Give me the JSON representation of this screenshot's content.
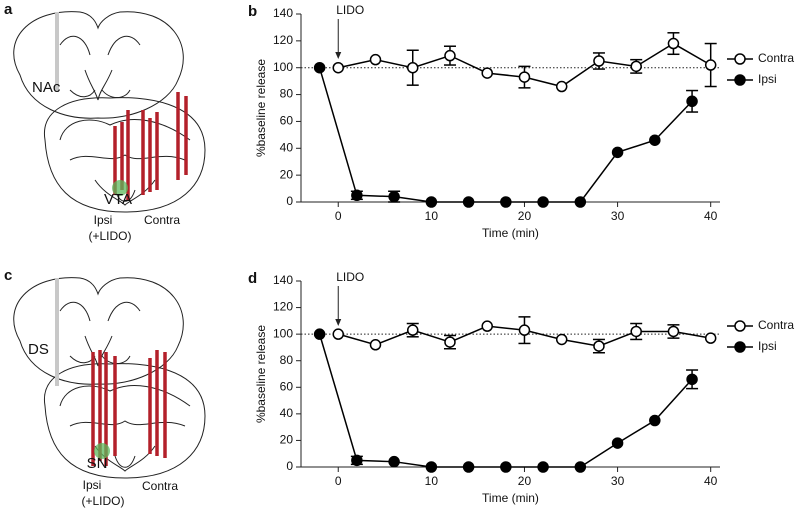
{
  "chart_data": [
    {
      "type": "line",
      "panel": "b",
      "xlabel": "Time (min)",
      "ylabel": "%baseline release",
      "annotation": {
        "text": "LIDO",
        "x": 0
      },
      "reference_line": 100,
      "xlim": [
        -4,
        41
      ],
      "ylim": [
        0,
        140
      ],
      "xticks": [
        0,
        10,
        20,
        30,
        40
      ],
      "yticks": [
        0,
        20,
        40,
        60,
        80,
        100,
        120,
        140
      ],
      "legend": "right",
      "series": [
        {
          "name": "Contra",
          "color": "#000000",
          "marker_fill": "#ffffff",
          "x": [
            0,
            4,
            8,
            12,
            16,
            20,
            24,
            28,
            32,
            36,
            40
          ],
          "values": [
            100,
            106,
            100,
            109,
            96,
            93,
            86,
            105,
            101,
            118,
            102
          ],
          "errors": [
            null,
            null,
            13,
            7,
            null,
            8,
            null,
            6,
            5,
            8,
            16
          ]
        },
        {
          "name": "Ipsi",
          "color": "#000000",
          "marker_fill": "#000000",
          "x": [
            -2,
            2,
            6,
            10,
            14,
            18,
            22,
            26,
            30,
            34,
            38
          ],
          "values": [
            100,
            5,
            4,
            0,
            0,
            0,
            0,
            0,
            37,
            46,
            75
          ],
          "errors": [
            null,
            3,
            4,
            null,
            null,
            null,
            null,
            null,
            null,
            null,
            8
          ]
        }
      ]
    },
    {
      "type": "line",
      "panel": "d",
      "xlabel": "Time (min)",
      "ylabel": "%baseline release",
      "annotation": {
        "text": "LIDO",
        "x": 0
      },
      "reference_line": 100,
      "xlim": [
        -4,
        41
      ],
      "ylim": [
        0,
        140
      ],
      "xticks": [
        0,
        10,
        20,
        30,
        40
      ],
      "yticks": [
        0,
        20,
        40,
        60,
        80,
        100,
        120,
        140
      ],
      "legend": "right",
      "series": [
        {
          "name": "Contra",
          "color": "#000000",
          "marker_fill": "#ffffff",
          "x": [
            0,
            4,
            8,
            12,
            16,
            20,
            24,
            28,
            32,
            36,
            40
          ],
          "values": [
            100,
            92,
            103,
            94,
            106,
            103,
            96,
            91,
            102,
            102,
            97
          ],
          "errors": [
            null,
            null,
            5,
            5,
            null,
            10,
            null,
            5,
            6,
            5,
            null
          ]
        },
        {
          "name": "Ipsi",
          "color": "#000000",
          "marker_fill": "#000000",
          "x": [
            -2,
            2,
            6,
            10,
            14,
            18,
            22,
            26,
            30,
            34,
            38
          ],
          "values": [
            100,
            5,
            4,
            0,
            0,
            0,
            0,
            0,
            18,
            35,
            66
          ],
          "errors": [
            null,
            3,
            null,
            null,
            null,
            null,
            null,
            null,
            null,
            null,
            7
          ]
        }
      ]
    }
  ],
  "diagrams": [
    {
      "panel": "a",
      "target": "NAc",
      "site": "VTA",
      "ipsi": "Ipsi",
      "ipsi_note": "(+LIDO)",
      "contra": "Contra"
    },
    {
      "panel": "c",
      "target": "DS",
      "site": "SN",
      "ipsi": "Ipsi",
      "ipsi_note": "(+LIDO)",
      "contra": "Contra"
    }
  ]
}
